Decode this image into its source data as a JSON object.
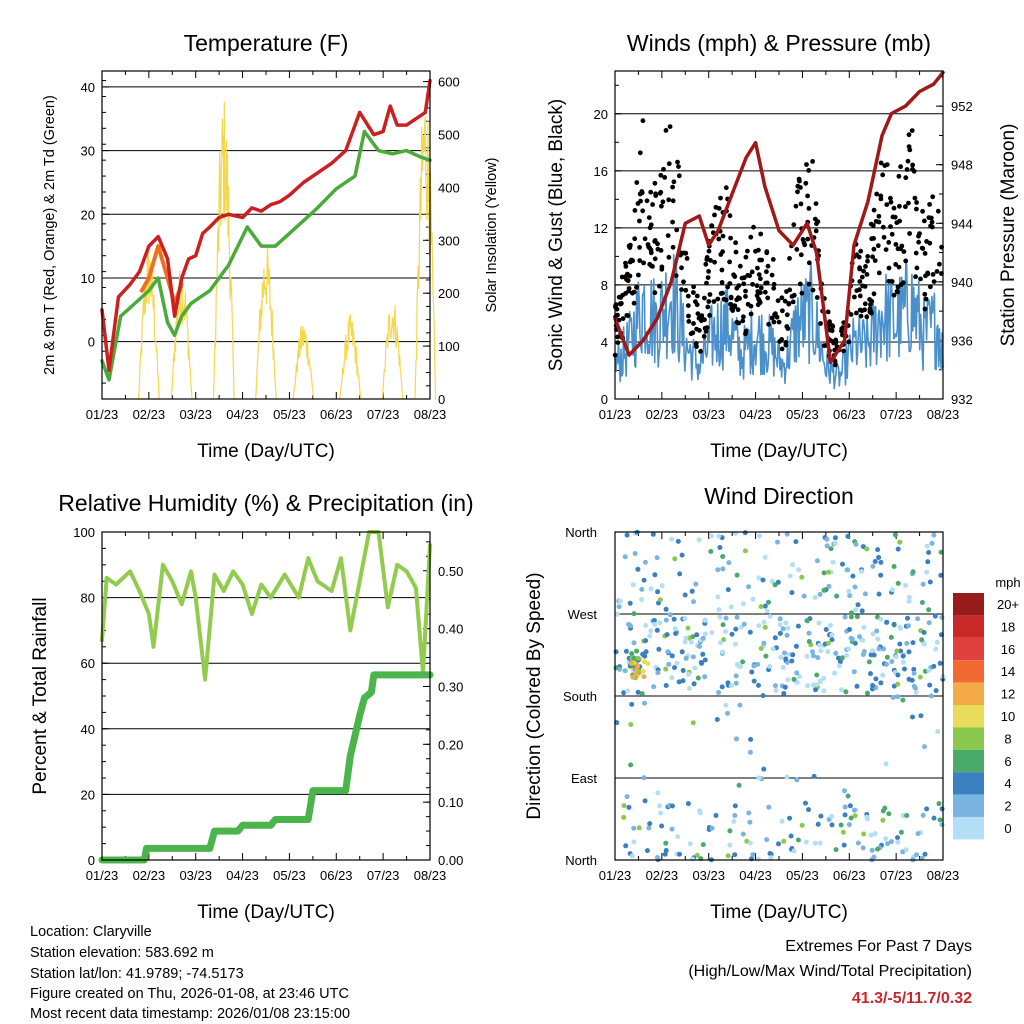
{
  "chart_data": [
    {
      "id": "temp",
      "type": "line",
      "title": "Temperature (F)",
      "xlabel": "Time (Day/UTC)",
      "ylabel": "2m & 9m T (Red, Orange) & 2m Td (Green)",
      "y2label": "Solar Insolation (Yellow)",
      "x_ticks": [
        "01/23",
        "02/23",
        "03/23",
        "04/23",
        "05/23",
        "06/23",
        "07/23",
        "08/23"
      ],
      "ylim": [
        -9,
        42.5
      ],
      "y_ticks": [
        0,
        10,
        20,
        30,
        40
      ],
      "y2lim": [
        0,
        620
      ],
      "y2_ticks": [
        0,
        100,
        200,
        300,
        400,
        500,
        600
      ],
      "series": [
        {
          "name": "2m T",
          "color": "#cc2020",
          "x": [
            0,
            0.15,
            0.35,
            0.6,
            0.8,
            1.0,
            1.2,
            1.4,
            1.55,
            1.7,
            1.85,
            2.0,
            2.15,
            2.3,
            2.5,
            2.7,
            3.0,
            3.2,
            3.4,
            3.6,
            3.8,
            4.0,
            4.3,
            4.6,
            4.9,
            5.2,
            5.5,
            5.8,
            6.0,
            6.15,
            6.3,
            6.5,
            6.7,
            6.9,
            7.0
          ],
          "values": [
            5,
            -4.5,
            7,
            9,
            11,
            15,
            16.5,
            13,
            4,
            10,
            13,
            13.5,
            17,
            18,
            19.5,
            20,
            19.5,
            21,
            20.5,
            21.5,
            22,
            23,
            25,
            26.5,
            28,
            30,
            36,
            32.5,
            33,
            37,
            34,
            34,
            35,
            36,
            41
          ]
        },
        {
          "name": "9m T",
          "color": "#f07020",
          "x": [
            0.85,
            1.0,
            1.2,
            1.4,
            1.55,
            1.7
          ],
          "values": [
            8,
            10,
            15,
            10,
            6,
            9
          ]
        },
        {
          "name": "2m Td",
          "color": "#4aaa3a",
          "x": [
            0,
            0.15,
            0.4,
            0.7,
            1.0,
            1.2,
            1.4,
            1.55,
            1.7,
            1.9,
            2.1,
            2.3,
            2.5,
            2.7,
            2.9,
            3.1,
            3.4,
            3.7,
            4.0,
            4.3,
            4.6,
            5.0,
            5.4,
            5.6,
            5.9,
            6.2,
            6.5,
            6.8,
            7.0
          ],
          "values": [
            -3,
            -6,
            4,
            6,
            8,
            10,
            3,
            1,
            4,
            6,
            7,
            8,
            10,
            12,
            15,
            18,
            15,
            15,
            17,
            19,
            21,
            24,
            26,
            33,
            30,
            29.5,
            30,
            29,
            28.5
          ]
        },
        {
          "name": "Solar Insolation",
          "color": "#f5d84a",
          "axis": "y2",
          "peaks_x": [
            1.0,
            1.7,
            2.6,
            3.5,
            4.3,
            5.3,
            6.2,
            6.9
          ],
          "peaks": [
            300,
            260,
            580,
            300,
            150,
            160,
            200,
            610
          ]
        }
      ]
    },
    {
      "id": "wind",
      "type": "scatter",
      "title": "Winds (mph) & Pressure (mb)",
      "xlabel": "Time (Day/UTC)",
      "ylabel": "Sonic Wind & Gust (Blue, Black)",
      "y2label": "Station Pressure (Maroon)",
      "x_ticks": [
        "01/23",
        "02/23",
        "03/23",
        "04/23",
        "05/23",
        "06/23",
        "07/23",
        "08/23"
      ],
      "ylim": [
        0,
        23
      ],
      "y_ticks": [
        0,
        4,
        8,
        12,
        16,
        20
      ],
      "y2lim": [
        932,
        954.4
      ],
      "y2_ticks": [
        932,
        936,
        940,
        944,
        948,
        952
      ],
      "series": [
        {
          "name": "Station Pressure",
          "color": "#a01818",
          "x": [
            0,
            0.3,
            0.6,
            0.9,
            1.2,
            1.5,
            1.8,
            2.0,
            2.2,
            2.5,
            2.8,
            3.0,
            3.2,
            3.5,
            3.8,
            4.1,
            4.3,
            4.6,
            4.9,
            5.1,
            5.4,
            5.7,
            5.9,
            6.2,
            6.5,
            6.8,
            7.0
          ],
          "values": [
            937.5,
            935,
            936,
            937.5,
            940,
            944,
            944.5,
            942.5,
            943.5,
            946,
            948.5,
            949.5,
            946.5,
            943.5,
            942.5,
            944,
            942,
            934.5,
            936,
            942.5,
            945.5,
            950,
            951.5,
            952,
            953,
            953.5,
            954.3
          ]
        },
        {
          "name": "Sonic Wind",
          "color": "#4a90cc",
          "envelope_x": [
            0,
            0.3,
            0.6,
            0.9,
            1.2,
            1.5,
            1.8,
            2.1,
            2.4,
            2.7,
            3.0,
            3.3,
            3.6,
            3.9,
            4.2,
            4.5,
            4.8,
            5.1,
            5.4,
            5.7,
            6.0,
            6.3,
            6.6,
            6.9,
            7.0
          ],
          "envelope": [
            3,
            5,
            9,
            7,
            10,
            5,
            3,
            6,
            7,
            4,
            6,
            5,
            3,
            7,
            8,
            3,
            2,
            5,
            5,
            8,
            7,
            9,
            6,
            7,
            4
          ]
        },
        {
          "name": "Gust",
          "color": "#000000",
          "max_value": 20.5
        }
      ]
    },
    {
      "id": "rh",
      "type": "line",
      "title": "Relative Humidity (%) & Precipitation (in)",
      "xlabel": "Time (Day/UTC)",
      "ylabel": "Percent & Total Rainfall",
      "x_ticks": [
        "01/23",
        "02/23",
        "03/23",
        "04/23",
        "05/23",
        "06/23",
        "07/23",
        "08/23"
      ],
      "ylim": [
        0,
        100
      ],
      "y_ticks": [
        0,
        20,
        40,
        60,
        80,
        100
      ],
      "y2lim": [
        0,
        0.567
      ],
      "y2_ticks": [
        "0.00",
        "0.10",
        "0.20",
        "0.30",
        "0.40",
        "0.50"
      ],
      "series": [
        {
          "name": "Relative Humidity",
          "color": "#92cc4e",
          "x": [
            0,
            0.1,
            0.3,
            0.6,
            0.8,
            1.0,
            1.1,
            1.3,
            1.5,
            1.7,
            1.9,
            2.0,
            2.2,
            2.4,
            2.6,
            2.8,
            3.0,
            3.2,
            3.4,
            3.6,
            3.9,
            4.2,
            4.4,
            4.6,
            4.9,
            5.1,
            5.3,
            5.5,
            5.7,
            5.9,
            6.1,
            6.3,
            6.5,
            6.7,
            6.85,
            7.0
          ],
          "values": [
            67,
            86,
            84,
            88,
            82,
            75,
            65,
            90,
            85,
            78,
            88,
            80,
            55,
            87,
            82,
            88,
            84,
            75,
            84,
            80,
            87,
            80,
            92,
            85,
            82,
            92,
            70,
            85,
            100,
            100,
            77,
            90,
            88,
            83,
            57,
            96
          ]
        },
        {
          "name": "Total Precipitation",
          "color": "#4cb44c",
          "axis": "y2",
          "x": [
            0,
            0.9,
            0.95,
            2.3,
            2.4,
            2.9,
            3.0,
            3.6,
            3.7,
            4.4,
            4.5,
            5.2,
            5.3,
            5.5,
            5.6,
            5.75,
            5.8,
            6.0,
            7.0
          ],
          "values": [
            0,
            0,
            0.02,
            0.02,
            0.05,
            0.05,
            0.06,
            0.06,
            0.07,
            0.07,
            0.12,
            0.12,
            0.18,
            0.25,
            0.28,
            0.29,
            0.32,
            0.32,
            0.32
          ]
        }
      ]
    },
    {
      "id": "wdir",
      "type": "scatter",
      "title": "Wind Direction",
      "xlabel": "Time (Day/UTC)",
      "ylabel": "Direction (Colored By Speed)",
      "x_ticks": [
        "01/23",
        "02/23",
        "03/23",
        "04/23",
        "05/23",
        "06/23",
        "07/23",
        "08/23"
      ],
      "y_ticks": [
        "North",
        "East",
        "South",
        "West",
        "North"
      ],
      "colorbar_title": "mph",
      "colorbar_labels": [
        "20+",
        "18",
        "16",
        "14",
        "12",
        "10",
        "8",
        "6",
        "4",
        "2",
        "0"
      ],
      "colorbar_colors": [
        "#961c1c",
        "#c82828",
        "#e04040",
        "#f06a32",
        "#f5aa4a",
        "#e8dc5a",
        "#8cc84e",
        "#4aaa6a",
        "#3a80c0",
        "#7ab4e0",
        "#b4def5"
      ]
    }
  ],
  "info": {
    "location": "Location: Claryville",
    "elevation": "Station elevation: 583.692 m",
    "latlon": "Station lat/lon: 41.9789; -74.5173",
    "created": "Figure created on Thu, 2026-01-08, at 23:46 UTC",
    "recent": "Most recent data timestamp: 2026/01/08 23:15:00"
  },
  "extremes": {
    "title": "Extremes For Past 7 Days",
    "subtitle": "(High/Low/Max Wind/Total Precipitation)",
    "value": "41.3/-5/11.7/0.32"
  }
}
